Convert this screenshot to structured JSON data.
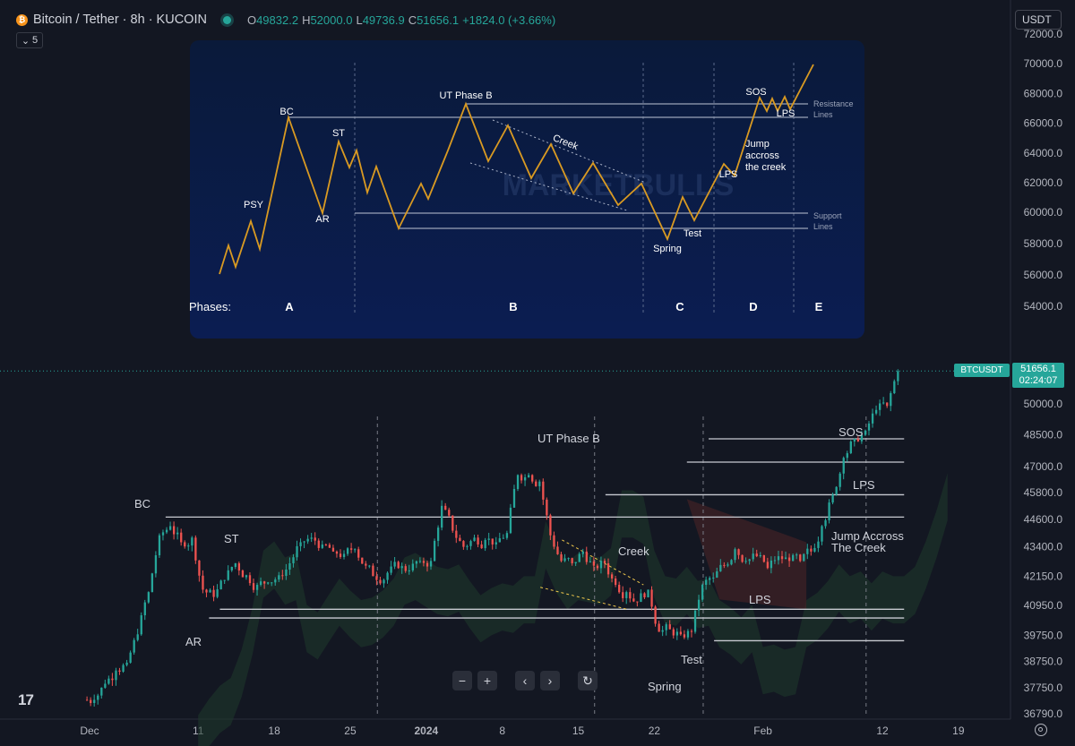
{
  "header": {
    "symbol": "Bitcoin / Tether · 8h · KUCOIN",
    "o_label": "O",
    "o": "49832.2",
    "h_label": "H",
    "h": "52000.0",
    "l_label": "L",
    "l": "49736.9",
    "c_label": "C",
    "c": "51656.1",
    "change": "+1824.0 (+3.66%)",
    "indicator_count": "5"
  },
  "currency": "USDT",
  "last_price": {
    "price": "51656.1",
    "countdown": "02:24:07",
    "ticker": "BTCUSDT"
  },
  "colors": {
    "up": "#26a69a",
    "down": "#ef5350",
    "bg": "#131722",
    "cloud_green": "#1f3a2c",
    "cloud_red": "#4a2326"
  },
  "chart_data": {
    "type": "candlestick",
    "title": "",
    "y_axis": {
      "scale": "log",
      "ticks": [
        72000.0,
        70000.0,
        68000.0,
        66000.0,
        64000.0,
        62000.0,
        60000.0,
        58000.0,
        56000.0,
        54000.0,
        50000.0,
        48500.0,
        47000.0,
        45800.0,
        44600.0,
        43400.0,
        42150.0,
        40950.0,
        39750.0,
        38750.0,
        37750.0,
        36790.0
      ],
      "tick_labels": [
        "72000.0",
        "70000.0",
        "68000.0",
        "66000.0",
        "64000.0",
        "62000.0",
        "60000.0",
        "58000.0",
        "56000.0",
        "54000.0",
        "50000.0",
        "48500.0",
        "47000.0",
        "45800.0",
        "44600.0",
        "43400.0",
        "42150.0",
        "40950.0",
        "39750.0",
        "38750.0",
        "37750.0",
        "36790.0"
      ]
    },
    "x_axis": {
      "labels": [
        "Dec",
        "11",
        "18",
        "25",
        "2024",
        "8",
        "15",
        "22",
        "Feb",
        "12",
        "19"
      ],
      "day_index": [
        0,
        10,
        17,
        24,
        31,
        38,
        45,
        52,
        62,
        73,
        80
      ]
    },
    "price_path_daily": {
      "start_day": 0,
      "closes": [
        37300,
        37900,
        38400,
        38700,
        39800,
        41500,
        43900,
        44300,
        43600,
        43800,
        41600,
        41300,
        42000,
        42700,
        42200,
        41800,
        41900,
        42200,
        42700,
        43600,
        43800,
        43500,
        43200,
        43100,
        43300,
        42600,
        42000,
        42300,
        42500,
        42400,
        42800,
        42800,
        45200,
        44100,
        43400,
        43800,
        43700,
        43600,
        44000,
        46600,
        46600,
        46300,
        43900,
        42800,
        42700,
        43200,
        42600,
        42700,
        41800,
        41500,
        41100,
        41600,
        39900,
        40000,
        39800,
        39900,
        41800,
        42100,
        42600,
        43300,
        42800,
        43000,
        42500,
        43000,
        42800,
        42800,
        43200,
        44300,
        45700,
        47400,
        48300,
        48700,
        49700,
        49900,
        51656
      ]
    },
    "annotations": [
      "BC",
      "ST",
      "AR",
      "UT Phase B",
      "Creek",
      "Spring",
      "Test",
      "LPS",
      "Jump Accross",
      "The Creek",
      "LPS",
      "SOS"
    ],
    "horizontal_levels": [
      48300,
      47200,
      45700,
      44700,
      40800,
      40450,
      39550
    ],
    "inset": {
      "phase_label": "Phases:",
      "phases": [
        "A",
        "B",
        "C",
        "D",
        "E"
      ],
      "labels": [
        "PSY",
        "BC",
        "AR",
        "ST",
        "UT Phase B",
        "Creek",
        "Spring",
        "Test",
        "LPS",
        "SOS",
        "LPS",
        "Jump",
        "accross",
        "the creek"
      ],
      "legend_resistance": [
        "Resistance",
        "Lines"
      ],
      "legend_support": [
        "Support",
        "Lines"
      ],
      "watermark": "MARKETBULLS"
    }
  },
  "toolbar": {
    "zoom_out": "−",
    "zoom_in": "+",
    "scroll_left": "‹",
    "scroll_right": "›",
    "reset": "↻"
  },
  "logo": "17"
}
